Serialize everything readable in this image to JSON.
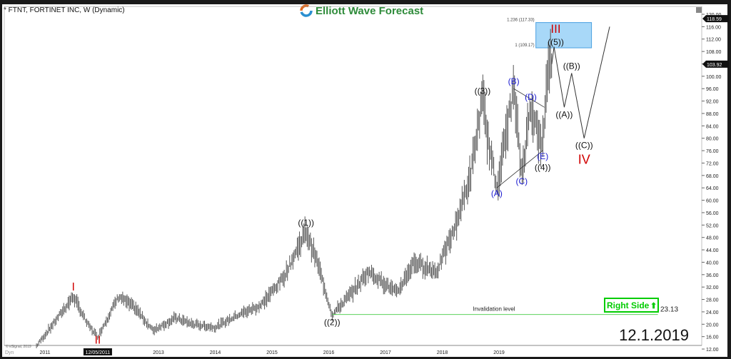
{
  "header": {
    "title": "* FTNT, FORTINET INC, W (Dynamic)",
    "brand": "Elliott Wave Forecast"
  },
  "chart_data": {
    "type": "ohlc-bar",
    "ylim": [
      12,
      120
    ],
    "yticks": [
      120,
      116,
      112,
      108,
      104,
      100,
      96,
      92,
      88,
      84,
      80,
      76,
      72,
      68,
      64,
      60,
      56,
      52,
      48,
      44,
      40,
      36,
      32,
      28,
      24,
      20,
      16,
      12
    ],
    "ytick_labels": [
      "120.00",
      "116.00",
      "112.00",
      "108.00",
      "",
      "100.00",
      "96.00",
      "92.00",
      "88.00",
      "84.00",
      "80.00",
      "76.00",
      "72.00",
      "68.00",
      "64.00",
      "60.00",
      "56.00",
      "52.00",
      "48.00",
      "44.00",
      "40.00",
      "36.00",
      "32.00",
      "28.00",
      "24.00",
      "20.00",
      "16.00",
      "12.00"
    ],
    "xticks": [
      {
        "x": 2011.0,
        "label": "2011"
      },
      {
        "x": 2011.93,
        "label": "12/05/2011",
        "highlight": true
      },
      {
        "x": 2013.0,
        "label": "2013"
      },
      {
        "x": 2014.0,
        "label": "2014"
      },
      {
        "x": 2015.0,
        "label": "2015"
      },
      {
        "x": 2016.0,
        "label": "2016"
      },
      {
        "x": 2017.0,
        "label": "2017"
      },
      {
        "x": 2018.0,
        "label": "2018"
      },
      {
        "x": 2019.0,
        "label": "2019"
      }
    ],
    "price_markers": [
      {
        "value": 118.59,
        "label": "118.59"
      },
      {
        "value": 103.92,
        "label": "103.92"
      }
    ],
    "price_path": [
      [
        2010.85,
        13
      ],
      [
        2011.1,
        19
      ],
      [
        2011.5,
        29
      ],
      [
        2011.75,
        20
      ],
      [
        2011.93,
        16
      ],
      [
        2012.3,
        29
      ],
      [
        2012.6,
        25
      ],
      [
        2012.9,
        18
      ],
      [
        2013.3,
        22
      ],
      [
        2013.6,
        20
      ],
      [
        2014.0,
        19
      ],
      [
        2014.4,
        23
      ],
      [
        2014.8,
        26
      ],
      [
        2015.2,
        35
      ],
      [
        2015.6,
        50
      ],
      [
        2015.8,
        40
      ],
      [
        2016.06,
        23
      ],
      [
        2016.4,
        30
      ],
      [
        2016.7,
        37
      ],
      [
        2017.0,
        33
      ],
      [
        2017.2,
        30
      ],
      [
        2017.5,
        40
      ],
      [
        2017.9,
        37
      ],
      [
        2018.2,
        50
      ],
      [
        2018.5,
        68
      ],
      [
        2018.71,
        93
      ],
      [
        2018.8,
        80
      ],
      [
        2018.96,
        64
      ],
      [
        2019.26,
        96
      ],
      [
        2019.4,
        68
      ],
      [
        2019.56,
        91
      ],
      [
        2019.76,
        76
      ],
      [
        2019.85,
        100
      ],
      [
        2019.9,
        106
      ],
      [
        2019.93,
        103.92
      ]
    ],
    "projection": [
      [
        2019.93,
        103.92
      ],
      [
        2019.97,
        109.5
      ],
      [
        2020.15,
        90
      ],
      [
        2020.28,
        101
      ],
      [
        2020.5,
        80
      ],
      [
        2020.95,
        116
      ]
    ],
    "triangle_lines": [
      [
        [
          2018.96,
          64
        ],
        [
          2019.77,
          76
        ]
      ],
      [
        [
          2019.26,
          96
        ],
        [
          2019.8,
          90
        ]
      ]
    ],
    "fib_box": {
      "x0": 2019.65,
      "x1": 2020.63,
      "levels": [
        {
          "value": 117.33,
          "label": "1.236 (117.33)"
        },
        {
          "value": 109.17,
          "label": "1 (109.17)"
        }
      ]
    },
    "invalidation": {
      "value": 23.13,
      "label": "Invalidation level",
      "value_label": "23.13",
      "x0": 2016.06,
      "x1": 2021.8
    },
    "wave_labels": [
      {
        "text": "I",
        "x": 2011.5,
        "y": 29,
        "dy": -8,
        "color": "#d00000",
        "size": 16
      },
      {
        "text": "II",
        "x": 2011.93,
        "y": 16,
        "dy": 10,
        "color": "#d00000",
        "size": 16
      },
      {
        "text": "((1))",
        "x": 2015.6,
        "y": 50,
        "dy": -8,
        "color": "#111",
        "size": 12
      },
      {
        "text": "((2))",
        "x": 2016.06,
        "y": 23,
        "dy": 14,
        "color": "#111",
        "size": 12
      },
      {
        "text": "((3))",
        "x": 2018.71,
        "y": 93,
        "dy": -6,
        "color": "#111",
        "size": 12
      },
      {
        "text": "(A)",
        "x": 2018.96,
        "y": 64,
        "dy": 12,
        "color": "#1a1ad0",
        "size": 12
      },
      {
        "text": "(B)",
        "x": 2019.26,
        "y": 96,
        "dy": -6,
        "color": "#1a1ad0",
        "size": 12
      },
      {
        "text": "(C)",
        "x": 2019.4,
        "y": 68,
        "dy": 12,
        "color": "#1a1ad0",
        "size": 12
      },
      {
        "text": "(D)",
        "x": 2019.56,
        "y": 91,
        "dy": -6,
        "color": "#1a1ad0",
        "size": 12
      },
      {
        "text": "(E)",
        "x": 2019.77,
        "y": 76,
        "dy": 12,
        "color": "#1a1ad0",
        "size": 12
      },
      {
        "text": "((4))",
        "x": 2019.77,
        "y": 72.5,
        "dy": 12,
        "color": "#111",
        "size": 12
      },
      {
        "text": "III",
        "x": 2020.0,
        "y": 114,
        "dy": 0,
        "color": "#d00000",
        "size": 17
      },
      {
        "text": "((5))",
        "x": 2020.0,
        "y": 109.17,
        "dy": -4,
        "color": "#111",
        "size": 12
      },
      {
        "text": "((A))",
        "x": 2020.15,
        "y": 90,
        "dy": 14,
        "color": "#111",
        "size": 12
      },
      {
        "text": "((B))",
        "x": 2020.28,
        "y": 101,
        "dy": -6,
        "color": "#111",
        "size": 12
      },
      {
        "text": "((C))",
        "x": 2020.5,
        "y": 80,
        "dy": 14,
        "color": "#111",
        "size": 12
      },
      {
        "text": "IV",
        "x": 2020.5,
        "y": 75,
        "dy": 14,
        "color": "#d00000",
        "size": 18
      }
    ]
  },
  "badge": {
    "label": "Right Side",
    "color": "#00cc00"
  },
  "date_stamp": "12.1.2019",
  "footer": {
    "copyright": "© eSignal, 2019",
    "dyn": "Dyn"
  }
}
